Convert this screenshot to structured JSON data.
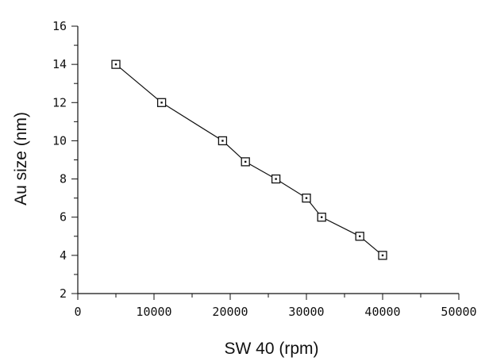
{
  "chart_data": {
    "type": "line",
    "title": "",
    "xlabel": "SW 40 (rpm)",
    "ylabel": "Au size (nm)",
    "xlim": [
      0,
      50000
    ],
    "ylim": [
      2,
      16
    ],
    "x_ticks": [
      "0",
      "10000",
      "20000",
      "30000",
      "40000",
      "50000"
    ],
    "y_ticks": [
      "2",
      "4",
      "6",
      "8",
      "10",
      "12",
      "14",
      "16"
    ],
    "grid": false,
    "legend": "none",
    "marker": "open-square",
    "series": [
      {
        "x": [
          5000,
          11000,
          19000,
          22000,
          26000,
          30000,
          32000,
          37000,
          40000
        ],
        "y": [
          14,
          12,
          10,
          8.9,
          8,
          7,
          6,
          5,
          4
        ]
      }
    ]
  }
}
